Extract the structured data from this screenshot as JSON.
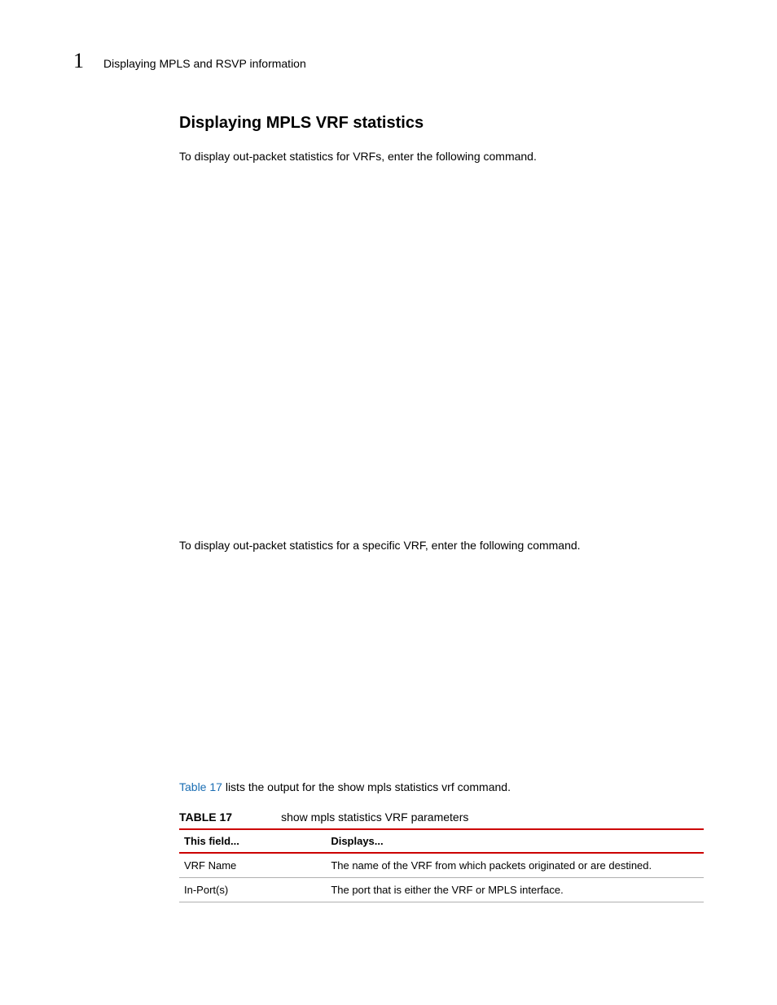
{
  "header": {
    "chapter_number": "1",
    "chapter_title": "Displaying MPLS and RSVP information"
  },
  "section": {
    "heading": "Displaying MPLS VRF statistics",
    "intro1": "To display out-packet statistics for VRFs, enter the following command.",
    "intro2": "To display out-packet statistics for a specific VRF, enter the following command.",
    "table_ref_link": "Table 17",
    "table_ref_rest": " lists the output for the show mpls statistics vrf command."
  },
  "table": {
    "label": "TABLE 17",
    "caption": "show mpls statistics VRF parameters",
    "columns": [
      "This field...",
      "Displays..."
    ],
    "rows": [
      [
        "VRF Name",
        "The name of the VRF from which packets originated or are destined."
      ],
      [
        "In-Port(s)",
        "The port that is either the VRF or MPLS interface."
      ]
    ]
  },
  "colors": {
    "rule": "#cc0000",
    "link": "#1a6db3",
    "row_border": "#b0b0b0"
  }
}
